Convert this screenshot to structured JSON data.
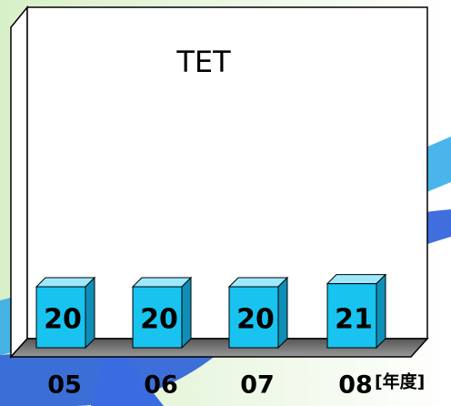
{
  "chart_data": {
    "type": "bar3d",
    "title": "TET",
    "x_unit": "[年度]",
    "categories": [
      "05",
      "06",
      "07",
      "08"
    ],
    "values": [
      20,
      20,
      20,
      21
    ],
    "color": "#19c3ef"
  }
}
